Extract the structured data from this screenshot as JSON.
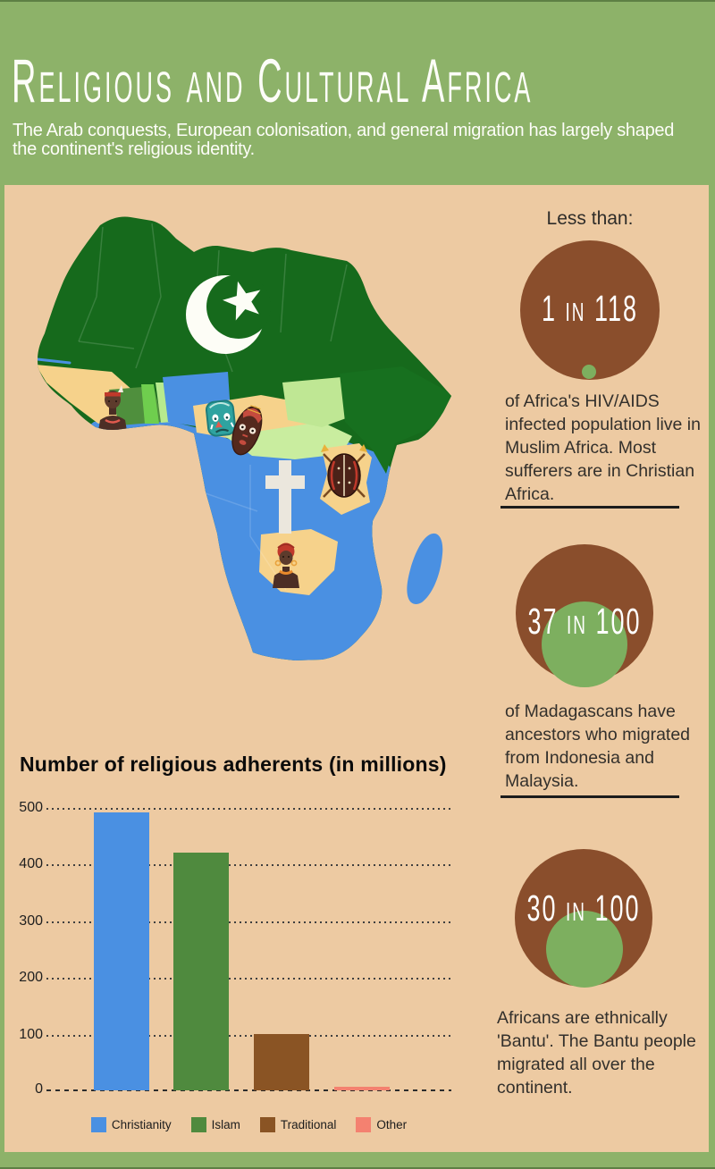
{
  "page": {
    "background_color": "#8db269",
    "panel_color": "#edcaa2"
  },
  "header": {
    "title": "Religious and Cultural Africa",
    "subtitle": "The Arab conquests, European colonisation, and general migration has largely shaped the continent's religious identity."
  },
  "map": {
    "muslim_region_color": "#166a1c",
    "christian_region_color": "#4a90e2",
    "traditional_region_color": "#f6d28b",
    "pale_green_region_color": "#c9ed9f",
    "bright_green_region_color": "#6fce4e",
    "mid_green_region_color": "#4f8f3d",
    "symbols": [
      "islam-crescent-and-star",
      "christian-cross",
      "tribal-masks",
      "shield-and-spears",
      "tribal-women"
    ]
  },
  "facts": [
    {
      "heading": "Less than:",
      "stat": "1 in 118",
      "caption": "of Africa's HIV/AIDS infected population live in Muslim Africa. Most sufferers are in Christian Africa.",
      "circle_color": "#8a4e2c",
      "accent_color": "#7daf5f"
    },
    {
      "stat": "37 in 100",
      "caption": "of Madagascans have ancestors who migrated from Indonesia and Malaysia.",
      "circle_color": "#8a4e2c",
      "accent_color": "#7daf5f"
    },
    {
      "stat": "30 in 100",
      "caption": "Africans are ethnically 'Bantu'. The Bantu people migrated all over the continent.",
      "circle_color": "#8a4e2c",
      "accent_color": "#7daf5f"
    }
  ],
  "chart_data": {
    "type": "bar",
    "title": "Number of religious adherents (in millions)",
    "categories": [
      "Christianity",
      "Islam",
      "Traditional",
      "Other"
    ],
    "values": [
      490,
      420,
      100,
      5
    ],
    "colors": [
      "#4a90e2",
      "#4f8a3e",
      "#8a5424",
      "#f48170"
    ],
    "xlabel": "",
    "ylabel": "",
    "ylim": [
      0,
      500
    ],
    "yticks": [
      0,
      100,
      200,
      300,
      400,
      500
    ],
    "grid": "dotted-horizontal",
    "legend_position": "bottom"
  }
}
